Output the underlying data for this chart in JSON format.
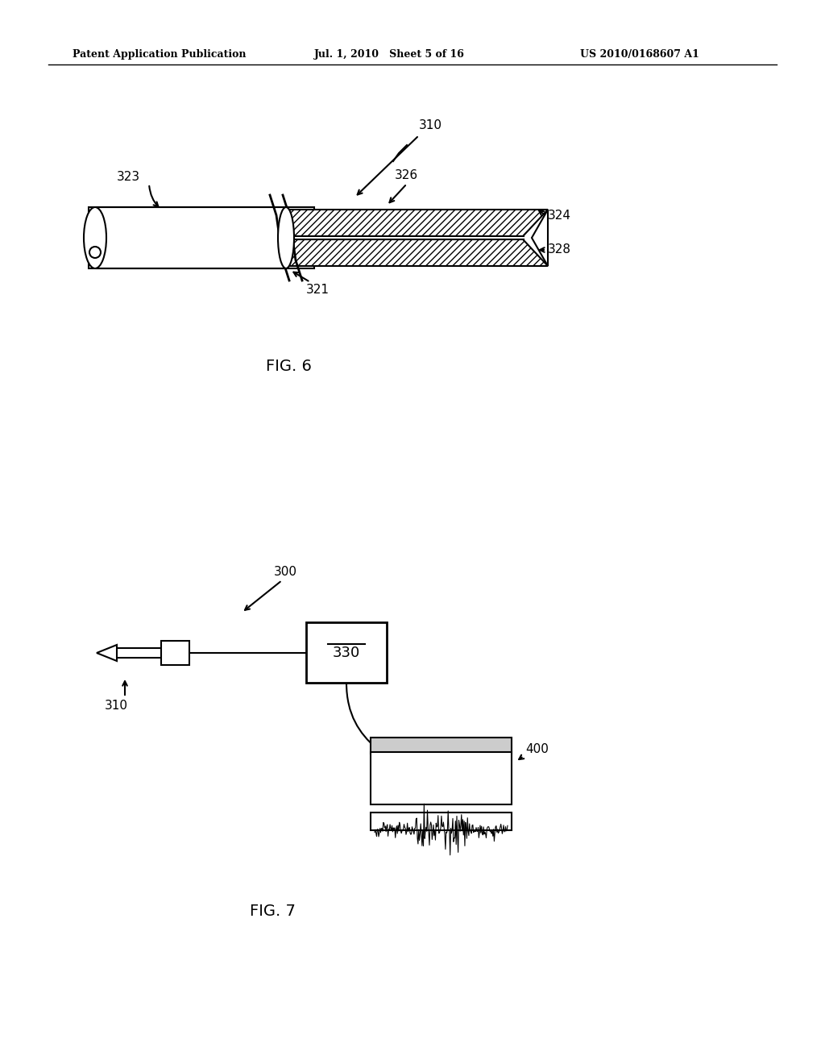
{
  "background_color": "#ffffff",
  "header_left": "Patent Application Publication",
  "header_mid": "Jul. 1, 2010   Sheet 5 of 16",
  "header_right": "US 2010/0168607 A1",
  "fig6_caption": "FIG. 6",
  "fig7_caption": "FIG. 7",
  "label_310_fig6": "310",
  "label_323": "323",
  "label_326": "326",
  "label_324": "324",
  "label_321": "321",
  "label_328": "328",
  "label_300": "300",
  "label_310_fig7": "310",
  "label_330": "330",
  "label_400": "400"
}
